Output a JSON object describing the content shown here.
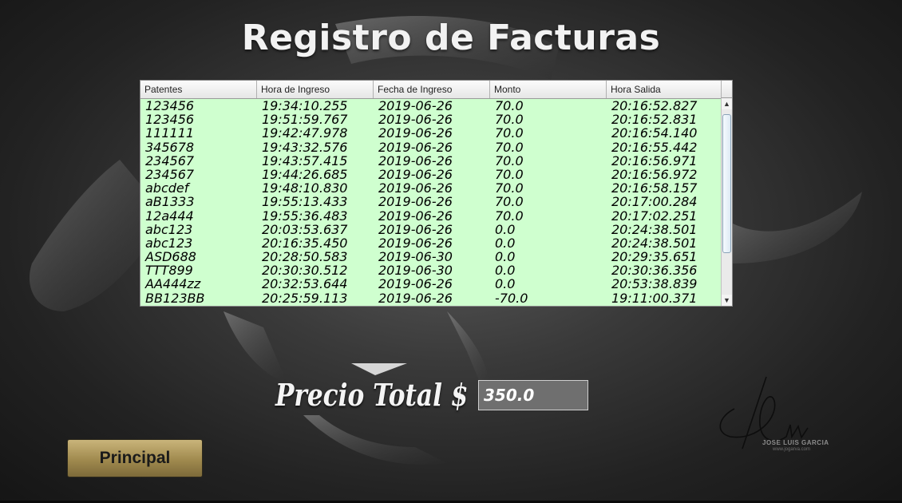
{
  "title": "Registro de Facturas",
  "table": {
    "columns": [
      "Patentes",
      "Hora de Ingreso",
      "Fecha de Ingreso",
      "Monto",
      "Hora Salida"
    ],
    "rows": [
      [
        "123456",
        "19:34:10.255",
        "2019-06-26",
        "70.0",
        "20:16:52.827"
      ],
      [
        "123456",
        "19:51:59.767",
        "2019-06-26",
        "70.0",
        "20:16:52.831"
      ],
      [
        "111111",
        "19:42:47.978",
        "2019-06-26",
        "70.0",
        "20:16:54.140"
      ],
      [
        "345678",
        "19:43:32.576",
        "2019-06-26",
        "70.0",
        "20:16:55.442"
      ],
      [
        "234567",
        "19:43:57.415",
        "2019-06-26",
        "70.0",
        "20:16:56.971"
      ],
      [
        "234567",
        "19:44:26.685",
        "2019-06-26",
        "70.0",
        "20:16:56.972"
      ],
      [
        "abcdef",
        "19:48:10.830",
        "2019-06-26",
        "70.0",
        "20:16:58.157"
      ],
      [
        "aB1333",
        "19:55:13.433",
        "2019-06-26",
        "70.0",
        "20:17:00.284"
      ],
      [
        "12a444",
        "19:55:36.483",
        "2019-06-26",
        "70.0",
        "20:17:02.251"
      ],
      [
        "abc123",
        "20:03:53.637",
        "2019-06-26",
        "0.0",
        "20:24:38.501"
      ],
      [
        "abc123",
        "20:16:35.450",
        "2019-06-26",
        "0.0",
        "20:24:38.501"
      ],
      [
        "ASD688",
        "20:28:50.583",
        "2019-06-30",
        "0.0",
        "20:29:35.651"
      ],
      [
        "TTT899",
        "20:30:30.512",
        "2019-06-30",
        "0.0",
        "20:30:36.356"
      ],
      [
        "AA444zz",
        "20:32:53.644",
        "2019-06-26",
        "0.0",
        "20:53:38.839"
      ],
      [
        "BB123BB",
        "20:25:59.113",
        "2019-06-26",
        "-70.0",
        "19:11:00.371"
      ]
    ],
    "scroll_up_icon": "triangle-up",
    "scroll_down_icon": "triangle-down"
  },
  "total": {
    "label": "Precio Total $",
    "value": "350.0"
  },
  "buttons": {
    "principal": "Principal"
  },
  "signature": {
    "name": "JOSE LUIS GARCIA",
    "site": "www.jogarva.com"
  },
  "colors": {
    "table_bg": "#cfffcf",
    "button_gold": "#a08a4e",
    "field_bg": "#6f6f6f"
  }
}
